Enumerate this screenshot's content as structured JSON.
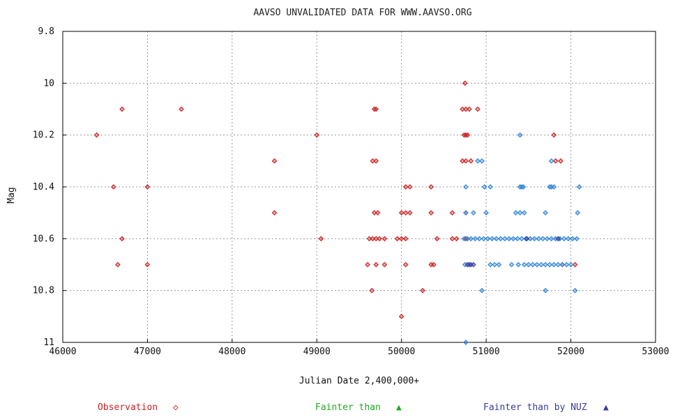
{
  "chart_data": {
    "type": "scatter",
    "title": "AAVSO UNVALIDATED DATA FOR    WWW.AAVSO.ORG",
    "xlabel": "Julian Date 2,400,000+",
    "ylabel": "Mag",
    "xlim": [
      46000,
      53000
    ],
    "ylim": [
      11,
      9.8
    ],
    "y_inverted": true,
    "grid": true,
    "x_ticks": [
      "46000",
      "47000",
      "48000",
      "49000",
      "50000",
      "51000",
      "52000",
      "53000"
    ],
    "y_ticks": [
      "9.8",
      "10",
      "10.2",
      "10.4",
      "10.6",
      "10.8",
      "11"
    ],
    "colors": {
      "observation": "#cc2222",
      "fainter": "#22aa22",
      "fainter_blue": "#2f86d8",
      "fainter_vis": "#3a3a9a"
    },
    "series": [
      {
        "name": "Observation",
        "marker": "diamond",
        "color": "#cc2222",
        "points": [
          [
            46700,
            10.1
          ],
          [
            47400,
            10.1
          ],
          [
            46400,
            10.2
          ],
          [
            46600,
            10.4
          ],
          [
            47000,
            10.4
          ],
          [
            46700,
            10.6
          ],
          [
            46650,
            10.7
          ],
          [
            47000,
            10.7
          ],
          [
            48500,
            10.3
          ],
          [
            48500,
            10.5
          ],
          [
            49000,
            10.2
          ],
          [
            49050,
            10.6
          ],
          [
            49680,
            10.1
          ],
          [
            49700,
            10.1
          ],
          [
            49660,
            10.3
          ],
          [
            49700,
            10.3
          ],
          [
            49680,
            10.5
          ],
          [
            49720,
            10.5
          ],
          [
            49620,
            10.6
          ],
          [
            49660,
            10.6
          ],
          [
            49700,
            10.6
          ],
          [
            49740,
            10.6
          ],
          [
            49800,
            10.6
          ],
          [
            49950,
            10.6
          ],
          [
            50050,
            10.6
          ],
          [
            50000,
            10.6
          ],
          [
            49600,
            10.7
          ],
          [
            49700,
            10.7
          ],
          [
            49800,
            10.7
          ],
          [
            49650,
            10.8
          ],
          [
            50000,
            10.9
          ],
          [
            50100,
            10.4
          ],
          [
            50050,
            10.4
          ],
          [
            50000,
            10.5
          ],
          [
            50050,
            10.5
          ],
          [
            50100,
            10.5
          ],
          [
            50050,
            10.7
          ],
          [
            50250,
            10.8
          ],
          [
            50350,
            10.4
          ],
          [
            50350,
            10.5
          ],
          [
            50420,
            10.6
          ],
          [
            50350,
            10.7
          ],
          [
            50380,
            10.7
          ],
          [
            50600,
            10.5
          ],
          [
            50600,
            10.6
          ],
          [
            50650,
            10.6
          ],
          [
            50750,
            10.0
          ],
          [
            50720,
            10.1
          ],
          [
            50760,
            10.1
          ],
          [
            50800,
            10.1
          ],
          [
            50900,
            10.1
          ],
          [
            50740,
            10.2
          ],
          [
            50760,
            10.2
          ],
          [
            50780,
            10.2
          ],
          [
            50720,
            10.3
          ],
          [
            50760,
            10.3
          ],
          [
            50820,
            10.3
          ],
          [
            50760,
            10.5
          ],
          [
            50760,
            10.6
          ],
          [
            50800,
            10.7
          ],
          [
            51800,
            10.2
          ],
          [
            51820,
            10.3
          ],
          [
            51880,
            10.3
          ],
          [
            51900,
            10.7
          ],
          [
            52050,
            10.7
          ]
        ]
      },
      {
        "name": "Fainter than by NUZ",
        "marker": "diamond",
        "color": "#2f86d8",
        "points": [
          [
            50760,
            11.0
          ],
          [
            50900,
            10.3
          ],
          [
            50950,
            10.3
          ],
          [
            50760,
            10.4
          ],
          [
            50980,
            10.4
          ],
          [
            51050,
            10.4
          ],
          [
            50760,
            10.5
          ],
          [
            50850,
            10.5
          ],
          [
            51000,
            10.5
          ],
          [
            50740,
            10.6
          ],
          [
            50780,
            10.6
          ],
          [
            50820,
            10.6
          ],
          [
            50870,
            10.6
          ],
          [
            50920,
            10.6
          ],
          [
            50970,
            10.6
          ],
          [
            51020,
            10.6
          ],
          [
            51070,
            10.6
          ],
          [
            51120,
            10.6
          ],
          [
            51170,
            10.6
          ],
          [
            51220,
            10.6
          ],
          [
            51270,
            10.6
          ],
          [
            51320,
            10.6
          ],
          [
            51370,
            10.6
          ],
          [
            51420,
            10.6
          ],
          [
            51470,
            10.6
          ],
          [
            51520,
            10.6
          ],
          [
            51570,
            10.6
          ],
          [
            51620,
            10.6
          ],
          [
            51670,
            10.6
          ],
          [
            51720,
            10.6
          ],
          [
            51770,
            10.6
          ],
          [
            51820,
            10.6
          ],
          [
            51870,
            10.6
          ],
          [
            51920,
            10.6
          ],
          [
            51970,
            10.6
          ],
          [
            52020,
            10.6
          ],
          [
            52070,
            10.6
          ],
          [
            50750,
            10.7
          ],
          [
            50800,
            10.7
          ],
          [
            51050,
            10.7
          ],
          [
            51100,
            10.7
          ],
          [
            51150,
            10.7
          ],
          [
            51300,
            10.7
          ],
          [
            51380,
            10.7
          ],
          [
            51450,
            10.7
          ],
          [
            51500,
            10.7
          ],
          [
            51550,
            10.7
          ],
          [
            51600,
            10.7
          ],
          [
            51650,
            10.7
          ],
          [
            51700,
            10.7
          ],
          [
            51750,
            10.7
          ],
          [
            51800,
            10.7
          ],
          [
            51850,
            10.7
          ],
          [
            51900,
            10.7
          ],
          [
            51950,
            10.7
          ],
          [
            52000,
            10.7
          ],
          [
            51350,
            10.5
          ],
          [
            51400,
            10.5
          ],
          [
            51450,
            10.5
          ],
          [
            51700,
            10.5
          ],
          [
            52080,
            10.5
          ],
          [
            51400,
            10.4
          ],
          [
            51420,
            10.4
          ],
          [
            51440,
            10.4
          ],
          [
            51750,
            10.4
          ],
          [
            51770,
            10.4
          ],
          [
            51800,
            10.4
          ],
          [
            52100,
            10.4
          ],
          [
            51400,
            10.2
          ],
          [
            51770,
            10.3
          ],
          [
            50950,
            10.8
          ],
          [
            51700,
            10.8
          ],
          [
            52050,
            10.8
          ]
        ]
      },
      {
        "name": "Fainter than by NUZ (vis)",
        "marker": "diamond",
        "color": "#3a3a9a",
        "points": [
          [
            50780,
            10.7
          ],
          [
            50820,
            10.7
          ],
          [
            50850,
            10.7
          ],
          [
            51480,
            10.6
          ],
          [
            51850,
            10.6
          ]
        ]
      }
    ],
    "legend": {
      "placement": "bottom",
      "items": [
        {
          "label": "Observation",
          "symbol": "◇",
          "color": "#cc2222"
        },
        {
          "label": "Fainter than",
          "symbol": "▲",
          "color": "#22aa22"
        },
        {
          "label": "Fainter than by NUZ",
          "symbol": "▲",
          "color": "#3a3a9a"
        }
      ]
    }
  }
}
